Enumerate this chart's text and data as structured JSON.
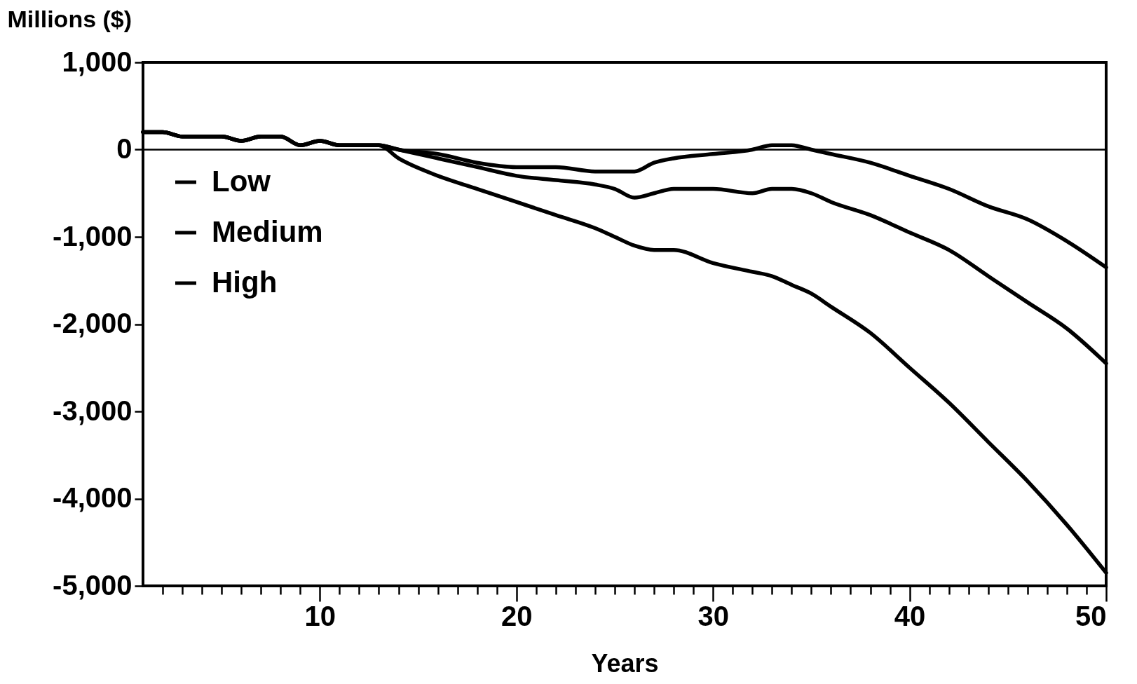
{
  "chart_data": {
    "type": "line",
    "xlabel": "Years",
    "ylabel": "Millions ($)",
    "x": [
      1,
      2,
      3,
      5,
      6,
      7,
      8,
      9,
      10,
      11,
      12,
      13,
      14,
      16,
      18,
      20,
      22,
      24,
      25,
      26,
      27,
      28,
      30,
      32,
      33,
      34,
      35,
      36,
      38,
      40,
      42,
      44,
      46,
      48,
      50
    ],
    "series": [
      {
        "name": "Low",
        "color": "#000000",
        "values": [
          200,
          200,
          150,
          150,
          100,
          150,
          150,
          50,
          100,
          50,
          50,
          50,
          0,
          -50,
          -150,
          -200,
          -200,
          -250,
          -250,
          -250,
          -150,
          -100,
          -50,
          0,
          50,
          50,
          0,
          -50,
          -150,
          -300,
          -450,
          -650,
          -800,
          -1050,
          -1350
        ]
      },
      {
        "name": "Medium",
        "color": "#000000",
        "values": [
          200,
          200,
          150,
          150,
          100,
          150,
          150,
          50,
          100,
          50,
          50,
          50,
          0,
          -100,
          -200,
          -300,
          -350,
          -400,
          -450,
          -550,
          -500,
          -450,
          -450,
          -500,
          -450,
          -450,
          -500,
          -600,
          -750,
          -950,
          -1150,
          -1450,
          -1750,
          -2050,
          -2450
        ]
      },
      {
        "name": "High",
        "color": "#000000",
        "values": [
          200,
          200,
          150,
          150,
          100,
          150,
          150,
          50,
          100,
          50,
          50,
          50,
          -100,
          -300,
          -450,
          -600,
          -750,
          -900,
          -1000,
          -1100,
          -1150,
          -1150,
          -1300,
          -1400,
          -1450,
          -1550,
          -1650,
          -1800,
          -2100,
          -2500,
          -2900,
          -3350,
          -3800,
          -4300,
          -4850
        ]
      }
    ],
    "xlim": [
      1,
      50
    ],
    "xticks": [
      {
        "value": 2,
        "label": null
      },
      {
        "value": 3,
        "label": null
      },
      {
        "value": 4,
        "label": null
      },
      {
        "value": 5,
        "label": null
      },
      {
        "value": 6,
        "label": null
      },
      {
        "value": 7,
        "label": null
      },
      {
        "value": 8,
        "label": null
      },
      {
        "value": 9,
        "label": null
      },
      10,
      {
        "value": 11,
        "label": null
      },
      {
        "value": 12,
        "label": null
      },
      {
        "value": 13,
        "label": null
      },
      {
        "value": 14,
        "label": null
      },
      {
        "value": 15,
        "label": null
      },
      {
        "value": 16,
        "label": null
      },
      {
        "value": 17,
        "label": null
      },
      {
        "value": 18,
        "label": null
      },
      {
        "value": 19,
        "label": null
      },
      20,
      {
        "value": 21,
        "label": null
      },
      {
        "value": 22,
        "label": null
      },
      {
        "value": 23,
        "label": null
      },
      {
        "value": 24,
        "label": null
      },
      {
        "value": 25,
        "label": null
      },
      {
        "value": 26,
        "label": null
      },
      {
        "value": 27,
        "label": null
      },
      {
        "value": 28,
        "label": null
      },
      {
        "value": 29,
        "label": null
      },
      30,
      {
        "value": 31,
        "label": null
      },
      {
        "value": 32,
        "label": null
      },
      {
        "value": 33,
        "label": null
      },
      {
        "value": 34,
        "label": null
      },
      {
        "value": 35,
        "label": null
      },
      {
        "value": 36,
        "label": null
      },
      {
        "value": 37,
        "label": null
      },
      {
        "value": 38,
        "label": null
      },
      {
        "value": 39,
        "label": null
      },
      40,
      {
        "value": 41,
        "label": null
      },
      {
        "value": 42,
        "label": null
      },
      {
        "value": 43,
        "label": null
      },
      {
        "value": 44,
        "label": null
      },
      {
        "value": 45,
        "label": null
      },
      {
        "value": 46,
        "label": null
      },
      {
        "value": 47,
        "label": null
      },
      {
        "value": 48,
        "label": null
      },
      {
        "value": 49,
        "label": null
      },
      50
    ],
    "ylim": [
      -5000,
      1000
    ],
    "yticks": [
      {
        "value": -5000,
        "label": "-5,000"
      },
      {
        "value": -4000,
        "label": "-4,000"
      },
      {
        "value": -3000,
        "label": "-3,000"
      },
      {
        "value": -2000,
        "label": "-2,000"
      },
      {
        "value": -1000,
        "label": "-1,000"
      },
      0,
      {
        "value": 1000,
        "label": "1,000"
      }
    ],
    "ref_lines": [
      {
        "axis": "y",
        "value": 0,
        "color": "#000000"
      }
    ],
    "legend": "top left",
    "grid": false,
    "marker": "none",
    "line_style": "solid"
  }
}
